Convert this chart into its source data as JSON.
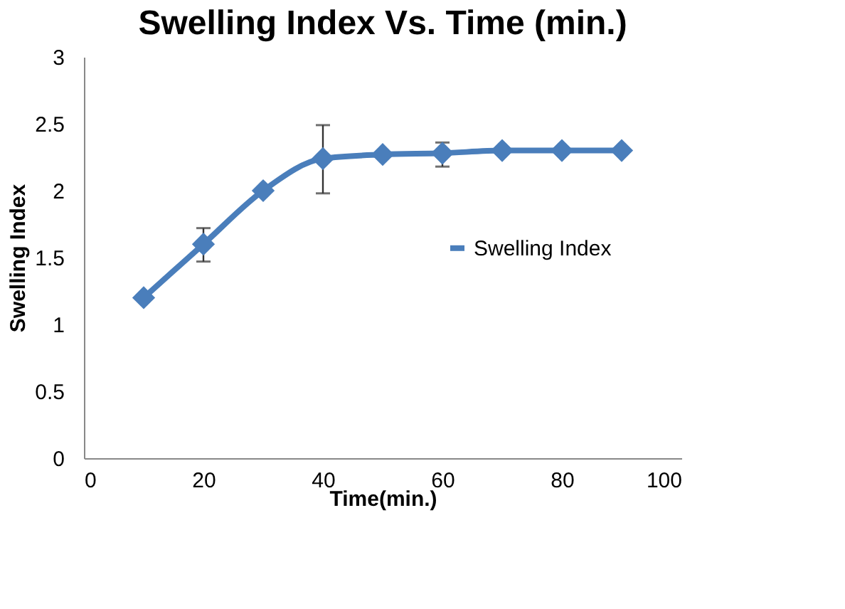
{
  "chart_data": {
    "type": "line",
    "title": "Swelling Index Vs. Time (min.)",
    "xlabel": "Time(min.)",
    "ylabel": "Swelling Index",
    "x": [
      10,
      20,
      30,
      40,
      50,
      60,
      70,
      80,
      90
    ],
    "series": [
      {
        "name": "Swelling Index",
        "color": "#4a7ebb",
        "values": [
          1.2,
          1.6,
          2.0,
          2.24,
          2.27,
          2.28,
          2.3,
          2.3,
          2.3
        ],
        "errors": [
          null,
          [
            1.47,
            1.72
          ],
          null,
          [
            1.98,
            2.49
          ],
          null,
          [
            2.18,
            2.36
          ],
          null,
          null,
          null
        ]
      }
    ],
    "xlim": [
      0,
      100
    ],
    "xticks": [
      0,
      20,
      40,
      60,
      80,
      100
    ],
    "ylim": [
      0,
      3
    ],
    "yticks": [
      0,
      0.5,
      1,
      1.5,
      2,
      2.5,
      3
    ],
    "grid": false,
    "legend": "right",
    "marker": "diamond",
    "line_style": "solid"
  }
}
